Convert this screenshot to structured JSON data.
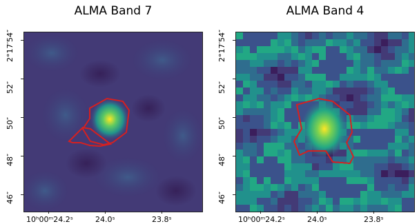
{
  "panels": [
    {
      "title": "ALMA Band 7",
      "y_ticks": [
        "2°17′54″",
        "52″",
        "50″",
        "48″",
        "46″"
      ],
      "x_ticks": [
        "10ʰ00ᵐ24.2ˢ",
        "24.0ˢ",
        "23.8ˢ"
      ],
      "contour_color": "#d62020"
    },
    {
      "title": "ALMA Band 4",
      "y_ticks": [
        "2°17′54″",
        "52″",
        "50″",
        "48″",
        "46″"
      ],
      "x_ticks": [
        "10ʰ00ᵐ24.2ˢ",
        "24.0ˢ",
        "23.8ˢ"
      ],
      "contour_color": "#d62020"
    }
  ],
  "colormap": {
    "low": "#3b1e5c",
    "mid": "#2a7c8e",
    "high": "#fde725"
  }
}
